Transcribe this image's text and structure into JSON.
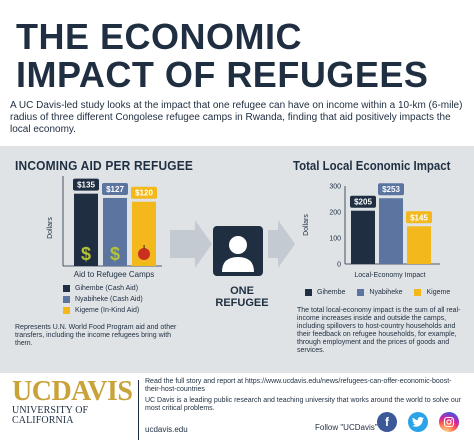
{
  "title": {
    "line1": "THE ECONOMIC",
    "line2": "IMPACT OF REFUGEES"
  },
  "intro": "A UC Davis-led study looks at the impact that one refugee can have on income within a 10-km (6-mile) radius of three different Congolese refugee camps in Rwanda, finding that aid positively impacts the local economy.",
  "left_chart": {
    "title": "INCOMING AID PER REFUGEE",
    "ylabel": "Dollars",
    "xlabel": "Aid to Refugee Camps",
    "bar_labels": [
      "$135",
      "$127",
      "$120"
    ],
    "legend": [
      "Gihembe (Cash Aid)",
      "Nyabiheke (Cash Aid)",
      "Kigeme (In-Kind Aid)"
    ],
    "note": "Represents U.N. World Food Program aid and other transfers, including the income refugees bring with them."
  },
  "center": {
    "label": "ONE REFUGEE"
  },
  "right_chart": {
    "title": "Total Local Economic Impact",
    "ylabel": "Dollars",
    "xlabel": "Local-Economy Impact",
    "ticks": [
      "300",
      "200",
      "100",
      "0"
    ],
    "bar_labels": [
      "$205",
      "$253",
      "$145"
    ],
    "legend": [
      "Gihembe",
      "Nyabiheke",
      "Kigeme"
    ],
    "note": "The total local-economy impact is the sum of all real-income increases inside and outside the camps, including spillovers to host-country households and their feedback on refugee households, for example, through employment and the prices of goods and services."
  },
  "chart_data": [
    {
      "type": "bar",
      "title": "INCOMING AID PER REFUGEE",
      "ylabel": "Dollars",
      "xlabel": "Aid to Refugee Camps",
      "categories": [
        "Gihembe (Cash Aid)",
        "Nyabiheke (Cash Aid)",
        "Kigeme (In-Kind Aid)"
      ],
      "values": [
        135,
        127,
        120
      ],
      "colors": [
        "#1f2f41",
        "#5b74a0",
        "#f2b81c"
      ]
    },
    {
      "type": "bar",
      "title": "Total Local Economic Impact",
      "ylabel": "Dollars",
      "xlabel": "Local-Economy Impact",
      "categories": [
        "Gihembe",
        "Nyabiheke",
        "Kigeme"
      ],
      "values": [
        205,
        253,
        145
      ],
      "ylim": [
        0,
        300
      ],
      "colors": [
        "#1f2f41",
        "#5b74a0",
        "#f2b81c"
      ]
    }
  ],
  "footer": {
    "logo_text": "UCDAVIS",
    "logo_sub": "UNIVERSITY OF CALIFORNIA",
    "read_more": "Read the full story and report at https://www.ucdavis.edu/news/refugees-can-offer-economic-boost-their-host-countries",
    "about": "UC Davis is a leading public research and teaching university that works around the world to solve our most critical problems.",
    "site": "ucdavis.edu",
    "follow": "Follow \"UCDavis\""
  },
  "social": [
    "facebook-icon",
    "twitter-icon",
    "instagram-icon"
  ]
}
